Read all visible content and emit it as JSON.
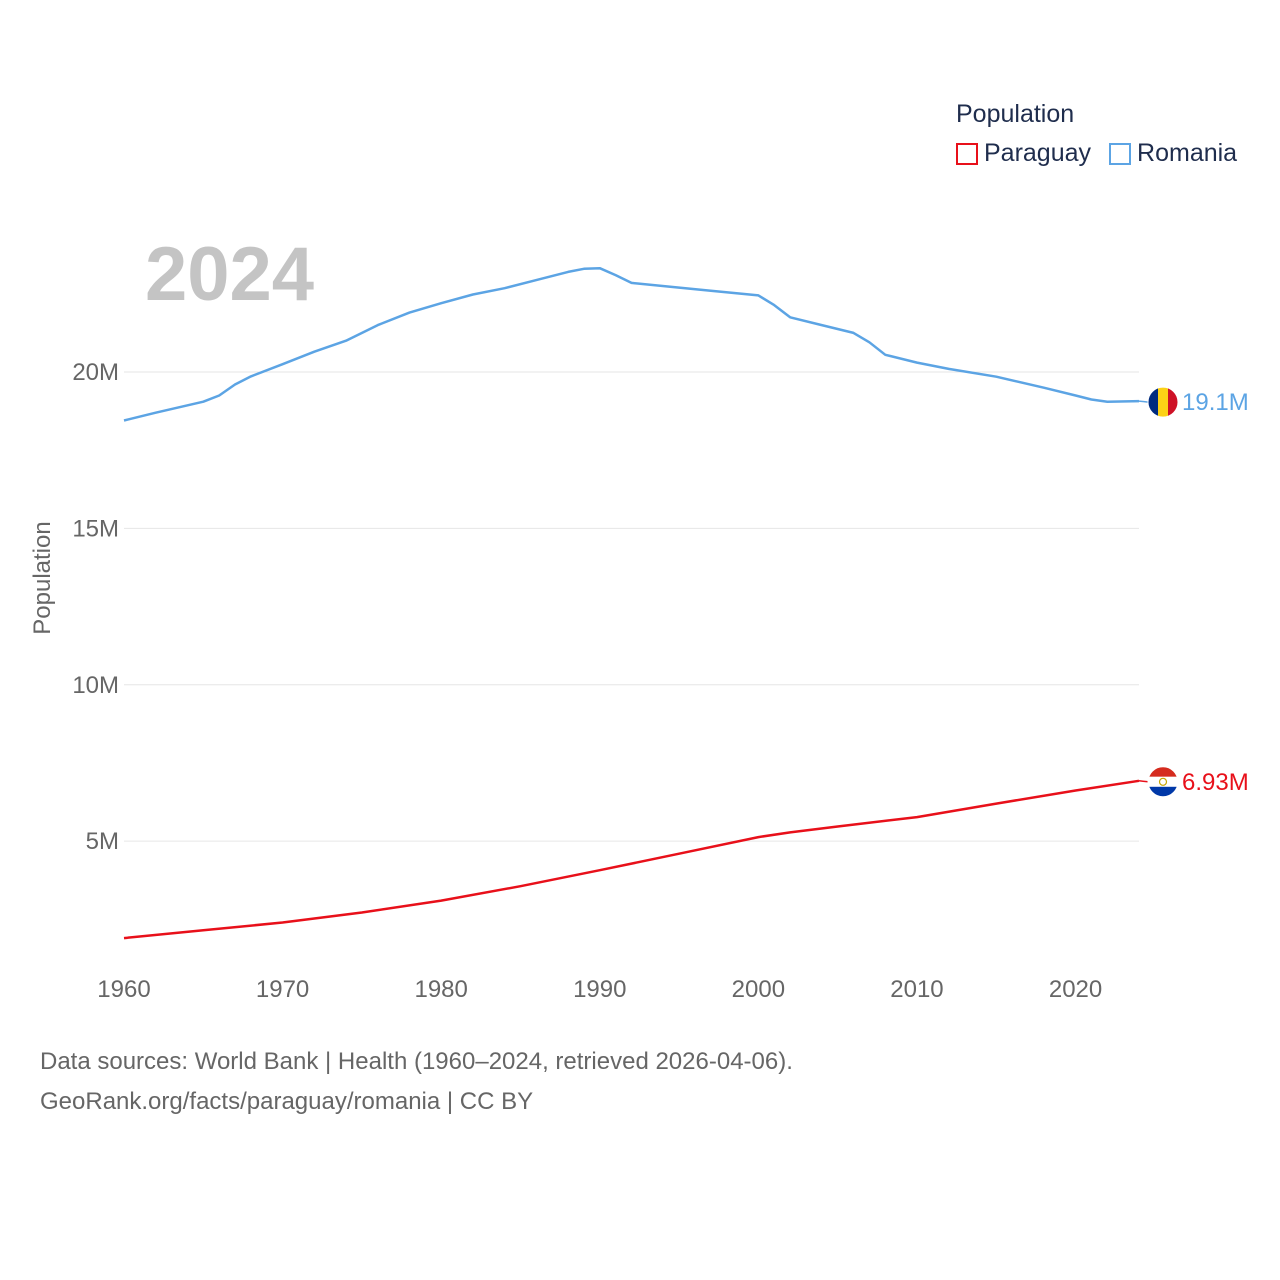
{
  "legend": {
    "title": "Population",
    "items": [
      {
        "name": "Paraguay",
        "color": "#e8101a"
      },
      {
        "name": "Romania",
        "color": "#5ca4e4"
      }
    ]
  },
  "footer": {
    "line1": "Data sources: World Bank | Health (1960–2024, retrieved 2026-04-06).",
    "line2": "GeoRank.org/facts/paraguay/romania | CC BY"
  },
  "chart_data": {
    "type": "line",
    "year_label": "2024",
    "ylabel": "Population",
    "xlim": [
      1960,
      2024
    ],
    "ylim": [
      1200000,
      25500000
    ],
    "x_ticks": [
      1960,
      1970,
      1980,
      1990,
      2000,
      2010,
      2020
    ],
    "y_ticks": [
      {
        "value": 5000000,
        "label": "5M"
      },
      {
        "value": 10000000,
        "label": "10M"
      },
      {
        "value": 15000000,
        "label": "15M"
      },
      {
        "value": 20000000,
        "label": "20M"
      }
    ],
    "series": [
      {
        "name": "Paraguay",
        "color": "#e8101a",
        "end_label": "6.93M",
        "flag": "paraguay-flag",
        "points": [
          [
            1960,
            1900000
          ],
          [
            1965,
            2150000
          ],
          [
            1970,
            2400000
          ],
          [
            1975,
            2720000
          ],
          [
            1980,
            3100000
          ],
          [
            1985,
            3560000
          ],
          [
            1990,
            4070000
          ],
          [
            1995,
            4600000
          ],
          [
            2000,
            5130000
          ],
          [
            2002,
            5280000
          ],
          [
            2005,
            5470000
          ],
          [
            2010,
            5770000
          ],
          [
            2015,
            6200000
          ],
          [
            2020,
            6620000
          ],
          [
            2024,
            6930000
          ]
        ]
      },
      {
        "name": "Romania",
        "color": "#5ca4e4",
        "end_label": "19.1M",
        "flag": "romania-flag",
        "points": [
          [
            1960,
            18450000
          ],
          [
            1962,
            18700000
          ],
          [
            1965,
            19050000
          ],
          [
            1966,
            19250000
          ],
          [
            1967,
            19600000
          ],
          [
            1968,
            19860000
          ],
          [
            1970,
            20250000
          ],
          [
            1972,
            20650000
          ],
          [
            1974,
            21000000
          ],
          [
            1976,
            21500000
          ],
          [
            1978,
            21900000
          ],
          [
            1980,
            22200000
          ],
          [
            1982,
            22480000
          ],
          [
            1984,
            22680000
          ],
          [
            1986,
            22940000
          ],
          [
            1988,
            23200000
          ],
          [
            1989,
            23300000
          ],
          [
            1990,
            23320000
          ],
          [
            1991,
            23100000
          ],
          [
            1992,
            22850000
          ],
          [
            1995,
            22700000
          ],
          [
            1997,
            22600000
          ],
          [
            2000,
            22450000
          ],
          [
            2001,
            22140000
          ],
          [
            2002,
            21750000
          ],
          [
            2004,
            21500000
          ],
          [
            2006,
            21250000
          ],
          [
            2007,
            20950000
          ],
          [
            2008,
            20550000
          ],
          [
            2010,
            20300000
          ],
          [
            2012,
            20100000
          ],
          [
            2015,
            19850000
          ],
          [
            2018,
            19500000
          ],
          [
            2020,
            19250000
          ],
          [
            2021,
            19120000
          ],
          [
            2022,
            19050000
          ],
          [
            2024,
            19070000
          ]
        ]
      }
    ]
  }
}
